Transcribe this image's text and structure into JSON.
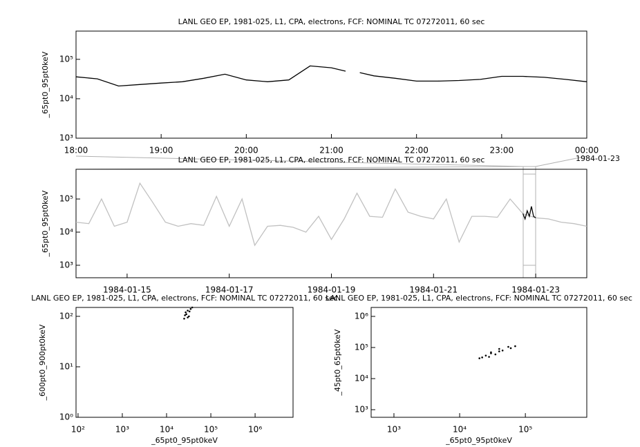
{
  "chart_data": [
    {
      "type": "line",
      "title": "LANL GEO EP, 1981-025, L1, CPA, electrons, FCF: NOMINAL TC 07272011, 60 sec",
      "y_label": "_65pt0_95pt0keV",
      "y_log": true,
      "x": [
        "18:00",
        "18:15",
        "18:30",
        "18:45",
        "19:00",
        "19:15",
        "19:30",
        "19:45",
        "20:00",
        "20:15",
        "20:30",
        "20:45",
        "21:00",
        "21:10",
        "21:15",
        "21:20",
        "21:30",
        "21:45",
        "22:00",
        "22:15",
        "22:30",
        "22:45",
        "23:00",
        "23:15",
        "23:30",
        "23:45",
        "00:00"
      ],
      "series": [
        {
          "color": "#000000",
          "values": [
            36000,
            32000,
            21000,
            23000,
            25000,
            27000,
            33000,
            42000,
            30000,
            27000,
            30000,
            68000,
            61000,
            50000,
            null,
            46000,
            38000,
            33000,
            28000,
            28000,
            29000,
            31000,
            37000,
            37000,
            35000,
            31000,
            27000
          ]
        }
      ],
      "xlim": [
        "18:00",
        "00:00"
      ],
      "xticks": [
        "18:00",
        "19:00",
        "20:00",
        "21:00",
        "22:00",
        "23:00",
        "00:00"
      ],
      "ylim": [
        1000,
        520000
      ],
      "yticks": [
        {
          "value": 1000,
          "label": "10³"
        },
        {
          "value": 10000,
          "label": "10⁴"
        },
        {
          "value": 100000,
          "label": "10⁵"
        }
      ]
    },
    {
      "type": "line",
      "title": "LANL GEO EP, 1981-025, L1, CPA, electrons, FCF: NOMINAL TC 07272011, 60 sec",
      "y_label": "_65pt0_95pt0keV",
      "y_log": true,
      "annotation": "1984-01-23",
      "x": [
        "1984-01-14 00:00",
        "1984-01-14 06:00",
        "1984-01-14 12:00",
        "1984-01-14 18:00",
        "1984-01-15 00:00",
        "1984-01-15 06:00",
        "1984-01-15 12:00",
        "1984-01-15 18:00",
        "1984-01-16 00:00",
        "1984-01-16 06:00",
        "1984-01-16 12:00",
        "1984-01-16 18:00",
        "1984-01-17 00:00",
        "1984-01-17 06:00",
        "1984-01-17 12:00",
        "1984-01-17 18:00",
        "1984-01-18 00:00",
        "1984-01-18 06:00",
        "1984-01-18 12:00",
        "1984-01-18 18:00",
        "1984-01-19 00:00",
        "1984-01-19 06:00",
        "1984-01-19 12:00",
        "1984-01-19 18:00",
        "1984-01-20 00:00",
        "1984-01-20 06:00",
        "1984-01-20 12:00",
        "1984-01-20 18:00",
        "1984-01-21 00:00",
        "1984-01-21 06:00",
        "1984-01-21 12:00",
        "1984-01-21 18:00",
        "1984-01-22 00:00",
        "1984-01-22 06:00",
        "1984-01-22 12:00",
        "1984-01-22 18:00",
        "1984-01-23 00:00",
        "1984-01-23 06:00",
        "1984-01-23 12:00",
        "1984-01-23 18:00",
        "1984-01-24 00:00"
      ],
      "series": [
        {
          "color": "#c0c0c0",
          "values": [
            20000,
            18000,
            100000,
            15000,
            20000,
            300000,
            80000,
            20000,
            15000,
            18000,
            16000,
            120000,
            15000,
            100000,
            4000,
            15000,
            16000,
            14000,
            10000,
            30000,
            6000,
            25000,
            150000,
            30000,
            28000,
            200000,
            40000,
            30000,
            25000,
            100000,
            5000,
            30000,
            30000,
            28000,
            100000,
            36000,
            27000,
            25000,
            20000,
            18000,
            15000
          ]
        },
        {
          "color": "#000000",
          "values": [
            36000,
            25000,
            44000,
            30000,
            60000,
            30000,
            27000
          ],
          "x": [
            "1984-01-22 18:00",
            "1984-01-22 19:00",
            "1984-01-22 20:00",
            "1984-01-22 21:00",
            "1984-01-22 22:00",
            "1984-01-22 23:00",
            "1984-01-23 00:00"
          ]
        }
      ],
      "xlim": [
        "1984-01-14",
        "1984-01-24"
      ],
      "xticks": [
        "1984-01-15",
        "1984-01-17",
        "1984-01-19",
        "1984-01-21",
        "1984-01-23"
      ],
      "ylim": [
        420,
        790000
      ],
      "yticks": [
        {
          "value": 1000,
          "label": "10³"
        },
        {
          "value": 10000,
          "label": "10⁴"
        },
        {
          "value": 100000,
          "label": "10⁵"
        }
      ]
    },
    {
      "type": "scatter",
      "title": "LANL GEO EP, 1981-025, L1, CPA, electrons, FCF: NOMINAL TC 07272011, 60 sec",
      "x_label": "_65pt0_95pt0keV",
      "y_label": "_600pt0_900pt0keV",
      "x_log": true,
      "y_log": true,
      "x": [
        25000,
        28000,
        30000,
        32000,
        35000,
        27000,
        38000,
        30000,
        26000,
        33000
      ],
      "series": [
        {
          "color": "#000000",
          "values": [
            90,
            110,
            130,
            100,
            140,
            120,
            150,
            95,
            105,
            125
          ]
        }
      ],
      "xlim": [
        90,
        7200000
      ],
      "ylim": [
        1,
        150
      ],
      "xticks": [
        {
          "value": 100,
          "label": "10²"
        },
        {
          "value": 1000,
          "label": "10³"
        },
        {
          "value": 10000,
          "label": "10⁴"
        },
        {
          "value": 100000,
          "label": "10⁵"
        },
        {
          "value": 1000000,
          "label": "10⁶"
        }
      ],
      "yticks": [
        {
          "value": 1,
          "label": "10⁰"
        },
        {
          "value": 10,
          "label": "10¹"
        },
        {
          "value": 100,
          "label": "10²"
        }
      ]
    },
    {
      "type": "scatter",
      "title": "LANL GEO EP, 1981-025, L1, CPA, electrons, FCF: NOMINAL TC 07272011, 60 sec",
      "x_label": "_65pt0_95pt0keV",
      "y_label": "_45pt0_65pt0keV",
      "x_log": true,
      "y_log": true,
      "x": [
        20000,
        25000,
        30000,
        40000,
        55000,
        70000,
        60000,
        45000,
        35000,
        28000,
        22000,
        30000,
        40000
      ],
      "series": [
        {
          "color": "#000000",
          "values": [
            45000,
            55000,
            70000,
            90000,
            105000,
            110000,
            95000,
            80000,
            60000,
            50000,
            48000,
            65000,
            75000
          ]
        }
      ],
      "xlim": [
        450,
        860000
      ],
      "ylim": [
        570,
        1940000
      ],
      "xticks": [
        {
          "value": 1000,
          "label": "10³"
        },
        {
          "value": 10000,
          "label": "10⁴"
        },
        {
          "value": 100000,
          "label": "10⁵"
        }
      ],
      "yticks": [
        {
          "value": 1000,
          "label": "10³"
        },
        {
          "value": 10000,
          "label": "10⁴"
        },
        {
          "value": 100000,
          "label": "10⁵"
        },
        {
          "value": 1000000,
          "label": "10⁶"
        }
      ]
    }
  ]
}
